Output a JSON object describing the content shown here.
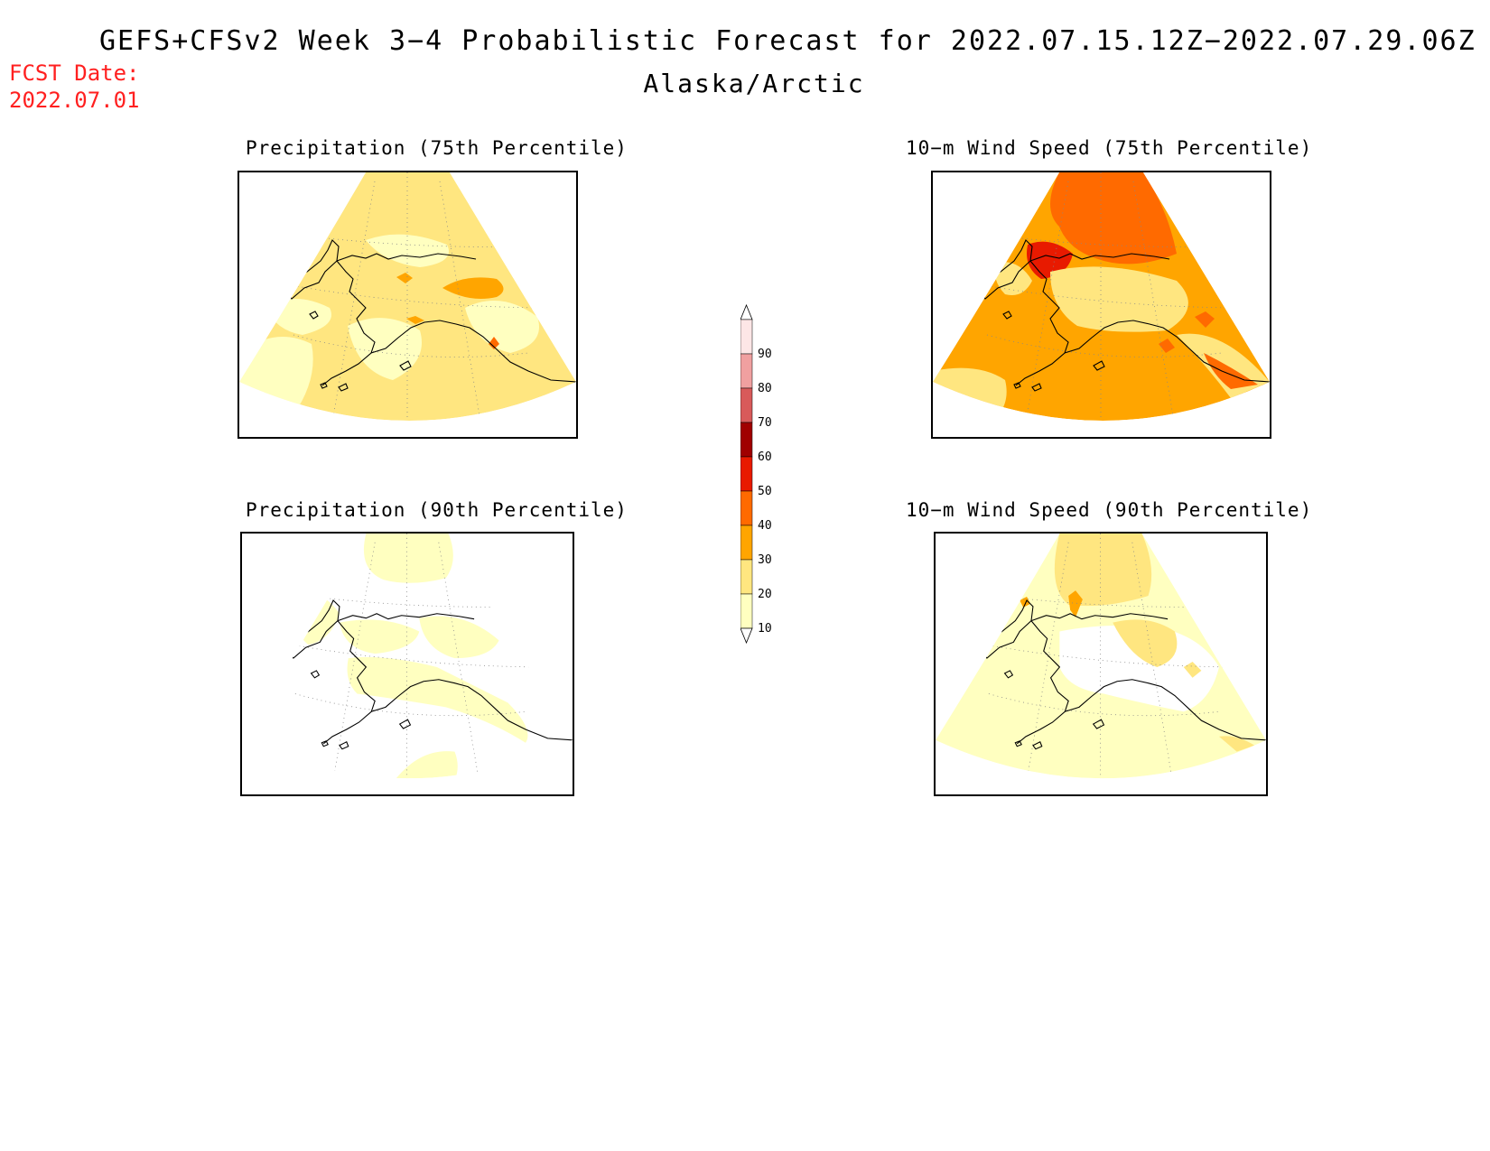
{
  "header": {
    "title": "GEFS+CFSv2 Week 3−4 Probabilistic Forecast for 2022.07.15.12Z−2022.07.29.06Z",
    "subtitle": "Alaska/Arctic",
    "fcst_label": "FCST Date:",
    "fcst_date": "2022.07.01"
  },
  "panels": [
    {
      "title": "Precipitation (75th Percentile)",
      "variable": "precipitation",
      "percentile": 75,
      "dominant_class": "20-30"
    },
    {
      "title": "10−m Wind Speed (75th Percentile)",
      "variable": "wind_speed",
      "percentile": 75,
      "dominant_class": "30-40"
    },
    {
      "title": "Precipitation (90th Percentile)",
      "variable": "precipitation",
      "percentile": 90,
      "dominant_class": "<10"
    },
    {
      "title": "10−m Wind Speed (90th Percentile)",
      "variable": "wind_speed",
      "percentile": 90,
      "dominant_class": "10-20"
    }
  ],
  "colorbar": {
    "labels": [
      "90",
      "80",
      "70",
      "60",
      "50",
      "40",
      "30",
      "20",
      "10"
    ],
    "colors": {
      "c10": "#ffffc0",
      "c20": "#ffe680",
      "c30": "#ffa500",
      "c40": "#ff6a00",
      "c50": "#e81a00",
      "c60": "#a00000",
      "c70": "#d85a5a",
      "c80": "#f0a0a0",
      "c90": "#fde6e6"
    }
  }
}
